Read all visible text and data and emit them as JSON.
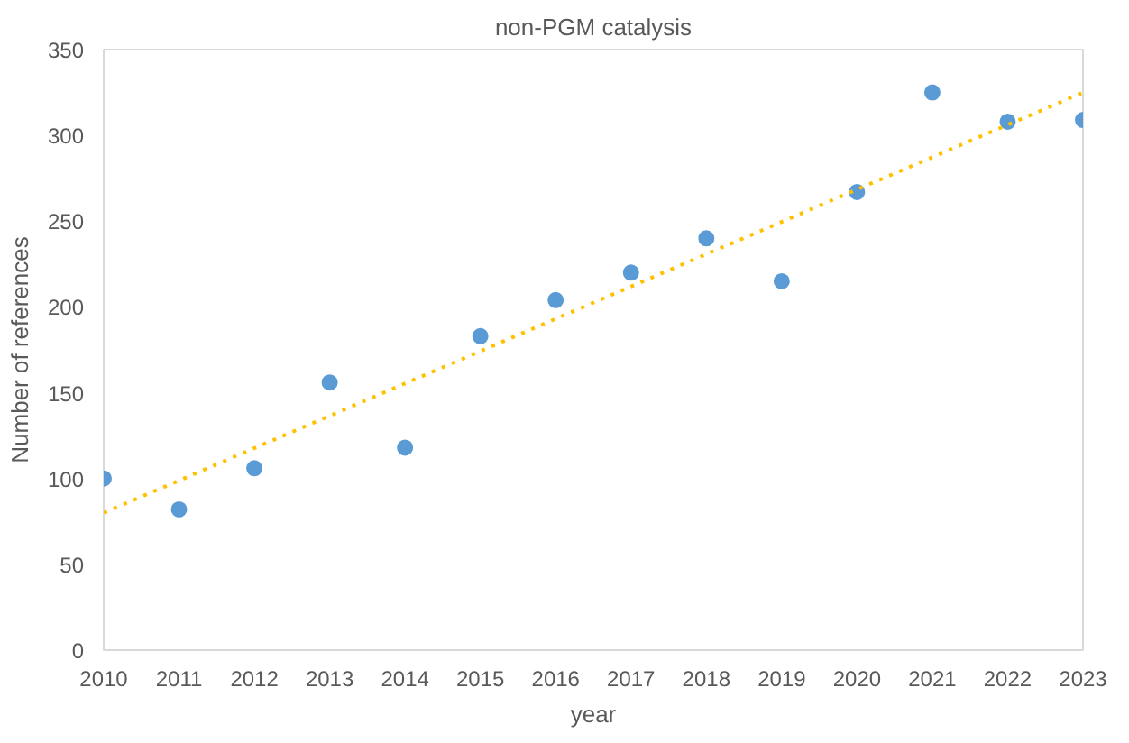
{
  "chart_data": {
    "type": "scatter",
    "title": "non-PGM catalysis",
    "xlabel": "year",
    "ylabel": "Number of references",
    "x": [
      2010,
      2011,
      2012,
      2013,
      2014,
      2015,
      2016,
      2017,
      2018,
      2019,
      2020,
      2021,
      2022,
      2023
    ],
    "series": [
      {
        "color": "#5b9bd5",
        "marker": "circle",
        "values": [
          100,
          82,
          106,
          156,
          118,
          183,
          204,
          220,
          240,
          215,
          267,
          325,
          308,
          309
        ]
      },
      {
        "type": "line",
        "color": "#ffc000",
        "line_style": "dotted",
        "x": [
          2010,
          2023
        ],
        "values": [
          80,
          325
        ]
      }
    ],
    "xlim": [
      2010,
      2023
    ],
    "xticks": [
      2010,
      2011,
      2012,
      2013,
      2014,
      2015,
      2016,
      2017,
      2018,
      2019,
      2020,
      2021,
      2022,
      2023
    ],
    "ylim": [
      0,
      350
    ],
    "yticks": [
      0,
      50,
      100,
      150,
      200,
      250,
      300,
      350
    ],
    "grid": false
  }
}
